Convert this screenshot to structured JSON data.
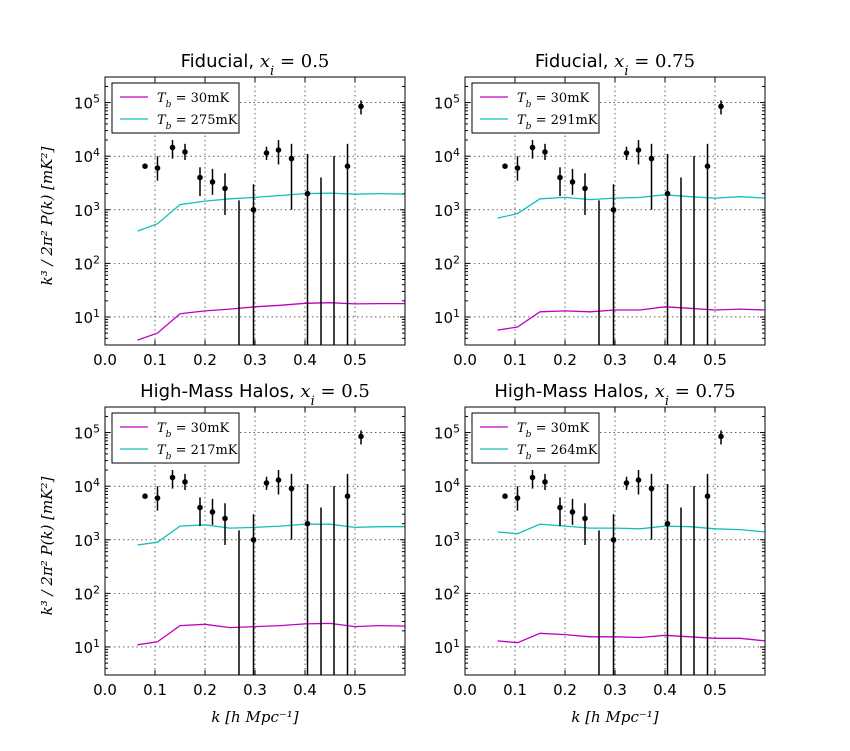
{
  "figure": {
    "ylabel": "k³ / 2π² P(k) [mK²]",
    "xlabel": "k [h Mpc⁻¹]"
  },
  "colors": {
    "magenta": "#c000c0",
    "cyan": "#10c0c0",
    "data": "#000000"
  },
  "chart_data": [
    {
      "type": "line",
      "title": "Fiducial, x_i = 0.5",
      "title_main": "Fiducial,",
      "title_math": "x_i = 0.5",
      "xlim": [
        0.0,
        0.6
      ],
      "ylim": [
        3,
        300000
      ],
      "yscale": "log",
      "x_ticks": [
        "0.0",
        "0.1",
        "0.2",
        "0.3",
        "0.4",
        "0.5"
      ],
      "legend": [
        "T_b = 30mK",
        "T_b = 275mK"
      ],
      "series": [
        {
          "name": "T_b = 30mK",
          "color": "magenta",
          "x": [
            0.065,
            0.105,
            0.15,
            0.2,
            0.25,
            0.3,
            0.35,
            0.4,
            0.45,
            0.5,
            0.55,
            0.6
          ],
          "y": [
            3.7,
            5,
            11.5,
            13,
            14,
            15.5,
            16.5,
            18,
            18.5,
            17.5,
            17.8,
            17.8
          ]
        },
        {
          "name": "T_b = 275mK",
          "color": "cyan",
          "x": [
            0.065,
            0.105,
            0.15,
            0.2,
            0.25,
            0.3,
            0.35,
            0.4,
            0.45,
            0.5,
            0.55,
            0.6
          ],
          "y": [
            400,
            550,
            1250,
            1450,
            1600,
            1700,
            1850,
            2000,
            2050,
            1950,
            2000,
            1950
          ]
        }
      ],
      "points": {
        "x": [
          0.08,
          0.105,
          0.135,
          0.16,
          0.19,
          0.215,
          0.24,
          0.268,
          0.297,
          0.323,
          0.347,
          0.373,
          0.405,
          0.432,
          0.458,
          0.485,
          0.512
        ],
        "y": [
          6500,
          6000,
          14500,
          12000,
          4000,
          3300,
          2500,
          null,
          1000,
          11500,
          13000,
          9000,
          2000,
          null,
          null,
          6500,
          85000
        ],
        "lo": [
          6500,
          3500,
          9000,
          8500,
          1800,
          1900,
          800,
          3,
          3,
          8500,
          7000,
          1000,
          3,
          3,
          3,
          3,
          60000
        ],
        "hi": [
          6500,
          10000,
          20000,
          17000,
          6200,
          5800,
          4800,
          1500,
          3000,
          15000,
          20000,
          17000,
          11000,
          4000,
          10000,
          17000,
          110000
        ]
      }
    },
    {
      "type": "line",
      "title": "Fiducial, x_i = 0.75",
      "title_main": "Fiducial,",
      "title_math": "x_i = 0.75",
      "xlim": [
        0.0,
        0.6
      ],
      "ylim": [
        3,
        300000
      ],
      "yscale": "log",
      "x_ticks": [
        "0.0",
        "0.1",
        "0.2",
        "0.3",
        "0.4",
        "0.5"
      ],
      "legend": [
        "T_b = 30mK",
        "T_b = 291mK"
      ],
      "series": [
        {
          "name": "T_b = 30mK",
          "color": "magenta",
          "x": [
            0.065,
            0.105,
            0.15,
            0.2,
            0.25,
            0.3,
            0.35,
            0.4,
            0.45,
            0.5,
            0.55,
            0.6
          ],
          "y": [
            5.7,
            6.5,
            12.5,
            13,
            12.5,
            13.5,
            13.5,
            15.5,
            14.5,
            13.5,
            14,
            13.5
          ]
        },
        {
          "name": "T_b = 291mK",
          "color": "cyan",
          "x": [
            0.065,
            0.105,
            0.15,
            0.2,
            0.25,
            0.3,
            0.35,
            0.4,
            0.45,
            0.5,
            0.55,
            0.6
          ],
          "y": [
            700,
            850,
            1600,
            1700,
            1550,
            1650,
            1700,
            1900,
            1750,
            1650,
            1750,
            1650
          ]
        }
      ],
      "points": {
        "x": [
          0.08,
          0.105,
          0.135,
          0.16,
          0.19,
          0.215,
          0.24,
          0.268,
          0.297,
          0.323,
          0.347,
          0.373,
          0.405,
          0.432,
          0.458,
          0.485,
          0.512
        ],
        "y": [
          6500,
          6000,
          14500,
          12000,
          4000,
          3300,
          2500,
          null,
          1000,
          11500,
          13000,
          9000,
          2000,
          null,
          null,
          6500,
          85000
        ],
        "lo": [
          6500,
          3500,
          9000,
          8500,
          1800,
          1900,
          800,
          3,
          3,
          8500,
          7000,
          1000,
          3,
          3,
          3,
          3,
          60000
        ],
        "hi": [
          6500,
          10000,
          20000,
          17000,
          6200,
          5800,
          4800,
          1500,
          3000,
          15000,
          20000,
          17000,
          11000,
          4000,
          10000,
          17000,
          110000
        ]
      }
    },
    {
      "type": "line",
      "title": "High-Mass Halos, x_i = 0.5",
      "title_main": "High-Mass Halos,",
      "title_math": "x_i = 0.5",
      "xlim": [
        0.0,
        0.6
      ],
      "ylim": [
        3,
        300000
      ],
      "yscale": "log",
      "x_ticks": [
        "0.0",
        "0.1",
        "0.2",
        "0.3",
        "0.4",
        "0.5"
      ],
      "legend": [
        "T_b = 30mK",
        "T_b = 217mK"
      ],
      "series": [
        {
          "name": "T_b = 30mK",
          "color": "magenta",
          "x": [
            0.065,
            0.105,
            0.15,
            0.2,
            0.25,
            0.3,
            0.35,
            0.4,
            0.45,
            0.5,
            0.55,
            0.6
          ],
          "y": [
            11,
            12.5,
            25,
            26.5,
            23,
            24,
            25,
            27,
            27.5,
            24,
            25,
            24.5
          ]
        },
        {
          "name": "T_b = 217mK",
          "color": "cyan",
          "x": [
            0.065,
            0.105,
            0.15,
            0.2,
            0.25,
            0.3,
            0.35,
            0.4,
            0.45,
            0.5,
            0.55,
            0.6
          ],
          "y": [
            800,
            900,
            1800,
            1900,
            1650,
            1700,
            1800,
            1950,
            1950,
            1700,
            1750,
            1750
          ]
        }
      ],
      "points": {
        "x": [
          0.08,
          0.105,
          0.135,
          0.16,
          0.19,
          0.215,
          0.24,
          0.268,
          0.297,
          0.323,
          0.347,
          0.373,
          0.405,
          0.432,
          0.458,
          0.485,
          0.512
        ],
        "y": [
          6500,
          6000,
          14500,
          12000,
          4000,
          3300,
          2500,
          null,
          1000,
          11500,
          13000,
          9000,
          2000,
          null,
          null,
          6500,
          85000
        ],
        "lo": [
          6500,
          3500,
          9000,
          8500,
          1800,
          1900,
          800,
          3,
          3,
          8500,
          7000,
          1000,
          3,
          3,
          3,
          3,
          60000
        ],
        "hi": [
          6500,
          10000,
          20000,
          17000,
          6200,
          5800,
          4800,
          1500,
          3000,
          15000,
          20000,
          17000,
          11000,
          4000,
          10000,
          17000,
          110000
        ]
      }
    },
    {
      "type": "line",
      "title": "High-Mass Halos, x_i = 0.75",
      "title_main": "High-Mass Halos,",
      "title_math": "x_i = 0.75",
      "xlim": [
        0.0,
        0.6
      ],
      "ylim": [
        3,
        300000
      ],
      "yscale": "log",
      "x_ticks": [
        "0.0",
        "0.1",
        "0.2",
        "0.3",
        "0.4",
        "0.5"
      ],
      "legend": [
        "T_b = 30mK",
        "T_b = 264mK"
      ],
      "series": [
        {
          "name": "T_b = 30mK",
          "color": "magenta",
          "x": [
            0.065,
            0.105,
            0.15,
            0.2,
            0.25,
            0.3,
            0.35,
            0.4,
            0.45,
            0.5,
            0.55,
            0.6
          ],
          "y": [
            13,
            12,
            18,
            17,
            15.5,
            15.5,
            15,
            16.5,
            15.5,
            14.5,
            14.5,
            13
          ]
        },
        {
          "name": "T_b = 264mK",
          "color": "cyan",
          "x": [
            0.065,
            0.105,
            0.15,
            0.2,
            0.25,
            0.3,
            0.35,
            0.4,
            0.45,
            0.5,
            0.55,
            0.6
          ],
          "y": [
            1400,
            1300,
            1950,
            1800,
            1650,
            1650,
            1600,
            1800,
            1750,
            1600,
            1550,
            1400
          ]
        }
      ],
      "points": {
        "x": [
          0.08,
          0.105,
          0.135,
          0.16,
          0.19,
          0.215,
          0.24,
          0.268,
          0.297,
          0.323,
          0.347,
          0.373,
          0.405,
          0.432,
          0.458,
          0.485,
          0.512
        ],
        "y": [
          6500,
          6000,
          14500,
          12000,
          4000,
          3300,
          2500,
          null,
          1000,
          11500,
          13000,
          9000,
          2000,
          null,
          null,
          6500,
          85000
        ],
        "lo": [
          6500,
          3500,
          9000,
          8500,
          1800,
          1900,
          800,
          3,
          3,
          8500,
          7000,
          1000,
          3,
          3,
          3,
          3,
          60000
        ],
        "hi": [
          6500,
          10000,
          20000,
          17000,
          6200,
          5800,
          4800,
          1500,
          3000,
          15000,
          20000,
          17000,
          11000,
          4000,
          10000,
          17000,
          110000
        ]
      }
    }
  ]
}
